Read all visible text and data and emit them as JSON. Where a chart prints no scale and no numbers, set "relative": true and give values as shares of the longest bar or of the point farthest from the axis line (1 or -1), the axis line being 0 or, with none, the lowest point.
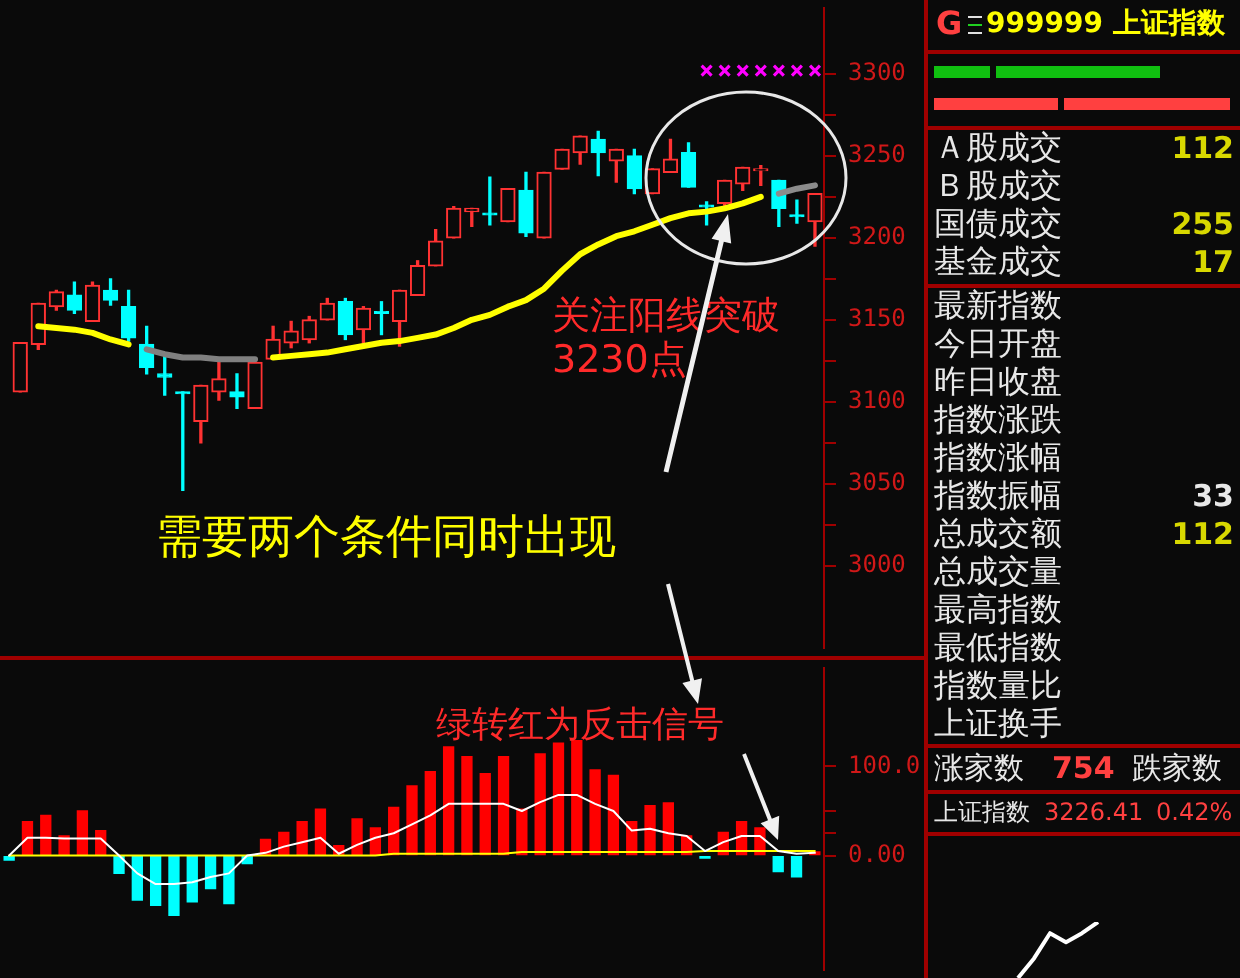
{
  "chart_data": [
    {
      "type": "candlestick",
      "categories": [
        null,
        null,
        null,
        null,
        null,
        null,
        null,
        null,
        null,
        null,
        null,
        null,
        null,
        null,
        null,
        null,
        null,
        null,
        null,
        null,
        null,
        null,
        null,
        null,
        null,
        null,
        null,
        null,
        null,
        null,
        null,
        null,
        null,
        null,
        null,
        null,
        null,
        null,
        null,
        null,
        null,
        null,
        null,
        null,
        null
      ],
      "ohlc": [
        [
          3106,
          3136,
          3106,
          3136
        ],
        [
          3135,
          3160,
          3132,
          3160
        ],
        [
          3158,
          3168,
          3156,
          3167
        ],
        [
          3165,
          3173,
          3154,
          3156
        ],
        [
          3149,
          3173,
          3149,
          3171
        ],
        [
          3168,
          3175,
          3159,
          3162
        ],
        [
          3158,
          3168,
          3137,
          3139
        ],
        [
          3135,
          3146,
          3117,
          3121
        ],
        [
          3117,
          3128,
          3104,
          3115
        ],
        [
          3106,
          3106,
          3046,
          3105
        ],
        [
          3088,
          3110,
          3075,
          3110
        ],
        [
          3106,
          3124,
          3101,
          3114
        ],
        [
          3106,
          3117,
          3096,
          3103
        ],
        [
          3096,
          3124,
          3096,
          3124
        ],
        [
          3126,
          3146,
          3126,
          3138
        ],
        [
          3136,
          3149,
          3133,
          3143
        ],
        [
          3138,
          3152,
          3136,
          3150
        ],
        [
          3150,
          3163,
          3150,
          3160
        ],
        [
          3161,
          3163,
          3138,
          3141
        ],
        [
          3144,
          3158,
          3136,
          3157
        ],
        [
          3155,
          3161,
          3141,
          3154
        ],
        [
          3149,
          3168,
          3134,
          3168
        ],
        [
          3165,
          3186,
          3165,
          3183
        ],
        [
          3183,
          3205,
          3183,
          3198
        ],
        [
          3200,
          3219,
          3200,
          3218
        ],
        [
          3216,
          3218,
          3207,
          3218
        ],
        [
          3215,
          3237,
          3208,
          3214
        ],
        [
          3210,
          3230,
          3210,
          3230
        ],
        [
          3229,
          3240,
          3201,
          3203
        ],
        [
          3200,
          3240,
          3200,
          3240
        ],
        [
          3242,
          3254,
          3242,
          3254
        ],
        [
          3252,
          3262,
          3245,
          3262
        ],
        [
          3260,
          3265,
          3238,
          3252
        ],
        [
          3247,
          3254,
          3234,
          3254
        ],
        [
          3250,
          3254,
          3227,
          3230
        ],
        [
          3227,
          3242,
          3227,
          3242
        ],
        [
          3240,
          3260,
          3240,
          3248
        ],
        [
          3252,
          3258,
          3231,
          3231
        ],
        [
          3220,
          3222,
          3208,
          3219
        ],
        [
          3221,
          3235,
          3218,
          3235
        ],
        [
          3233,
          3243,
          3229,
          3243
        ],
        [
          3241,
          3244,
          3232,
          3242
        ],
        [
          3235,
          3235,
          3207,
          3218
        ],
        [
          3214,
          3223,
          3209,
          3213
        ],
        [
          3210,
          3227,
          3195,
          3227
        ]
      ],
      "colors": [
        "#ff3232",
        "#ff3232",
        "#ff3232",
        "#00ffff",
        "#ff3232",
        "#00ffff",
        "#00ffff",
        "#00ffff",
        "#00ffff",
        "#00ffff",
        "#ff3232",
        "#ff3232",
        "#00ffff",
        "#ff3232",
        "#ff3232",
        "#ff3232",
        "#ff3232",
        "#ff3232",
        "#00ffff",
        "#ff3232",
        "#00ffff",
        "#ff3232",
        "#ff3232",
        "#ff3232",
        "#ff3232",
        "#ff3232",
        "#00ffff",
        "#ff3232",
        "#00ffff",
        "#ff3232",
        "#ff3232",
        "#ff3232",
        "#00ffff",
        "#ff3232",
        "#00ffff",
        "#ff3232",
        "#ff3232",
        "#00ffff",
        "#00ffff",
        "#ff3232",
        "#ff3232",
        "#ff3232",
        "#00ffff",
        "#00ffff",
        "#ff3232"
      ],
      "series": [
        {
          "type": "line",
          "color": "#ffff00",
          "values": [
            null,
            3146,
            3145,
            3144,
            3142,
            3138,
            3135,
            null,
            null,
            null,
            null,
            null,
            null,
            null,
            3127,
            3128,
            3129,
            3130,
            3132,
            3134,
            3136,
            3137,
            3139,
            3141,
            3145,
            3150,
            3153,
            3158,
            3162,
            3169,
            3180,
            3190,
            3196,
            3201,
            3204,
            3208,
            3212,
            3215,
            3216,
            3218,
            3221,
            3225,
            null,
            null,
            null
          ]
        },
        {
          "type": "line",
          "color": "#808080",
          "values": [
            null,
            null,
            null,
            null,
            null,
            null,
            null,
            3132,
            3129,
            3127,
            3127,
            3126,
            3126,
            3126,
            null,
            null,
            null,
            null,
            null,
            null,
            null,
            null,
            null,
            null,
            null,
            null,
            null,
            null,
            null,
            null,
            null,
            null,
            null,
            null,
            null,
            null,
            null,
            null,
            null,
            null,
            null,
            null,
            null,
            null,
            null
          ]
        },
        {
          "type": "line",
          "color": "#8c8c8c",
          "values": [
            null,
            null,
            null,
            null,
            null,
            null,
            null,
            null,
            null,
            null,
            null,
            null,
            null,
            null,
            null,
            null,
            null,
            null,
            null,
            null,
            null,
            null,
            null,
            null,
            null,
            null,
            null,
            null,
            null,
            null,
            null,
            null,
            null,
            null,
            null,
            null,
            null,
            null,
            null,
            null,
            null,
            null,
            3227,
            3230,
            3232
          ]
        },
        {
          "type": "scatter",
          "color": "#ff00ff",
          "marker": "cross",
          "values": [
            null,
            null,
            null,
            null,
            null,
            null,
            null,
            null,
            null,
            null,
            null,
            null,
            null,
            null,
            null,
            null,
            null,
            null,
            null,
            null,
            null,
            null,
            null,
            null,
            null,
            null,
            null,
            null,
            null,
            null,
            null,
            null,
            null,
            null,
            null,
            null,
            null,
            null,
            3302,
            3302,
            3302,
            3302,
            3302,
            3302,
            3302
          ]
        }
      ],
      "ylim": [
        2950,
        3340
      ],
      "yticks": [
        3000,
        {
          "value": 3025,
          "label": null
        },
        3050,
        {
          "value": 3075,
          "label": null
        },
        3100,
        {
          "value": 3125,
          "label": null
        },
        3150,
        {
          "value": 3175,
          "label": null
        },
        3200,
        {
          "value": 3225,
          "label": null
        },
        3250,
        {
          "value": 3275,
          "label": null
        },
        3300
      ],
      "tick_labels": "y",
      "annotations": [
        "关注阳线突破\n3230点",
        "需要两个条件同时出现"
      ]
    },
    {
      "type": "bar",
      "categories": [
        null,
        null,
        null,
        null,
        null,
        null,
        null,
        null,
        null,
        null,
        null,
        null,
        null,
        null,
        null,
        null,
        null,
        null,
        null,
        null,
        null,
        null,
        null,
        null,
        null,
        null,
        null,
        null,
        null,
        null,
        null,
        null,
        null,
        null,
        null,
        null,
        null,
        null,
        null,
        null,
        null,
        null,
        null,
        null,
        null
      ],
      "series": [
        {
          "type": "bar",
          "colors": [
            "#00ffff",
            "#ff0000",
            "#ff0000",
            "#ff0000",
            "#ff0000",
            "#ff0000",
            "#00ffff",
            "#00ffff",
            "#00ffff",
            "#00ffff",
            "#00ffff",
            "#00ffff",
            "#00ffff",
            "#00ffff",
            "#ff0000",
            "#ff0000",
            "#ff0000",
            "#ff0000",
            "#ff0000",
            "#ff0000",
            "#ff0000",
            "#ff0000",
            "#ff0000",
            "#ff0000",
            "#ff0000",
            "#ff0000",
            "#ff0000",
            "#ff0000",
            "#ff0000",
            "#ff0000",
            "#ff0000",
            "#ff0000",
            "#ff0000",
            "#ff0000",
            "#ff0000",
            "#ff0000",
            "#ff0000",
            "#ff0000",
            "#00ffff",
            "#ff0000",
            "#ff0000",
            "#ff0000",
            "#00ffff",
            "#00ffff",
            "#ff0000"
          ],
          "values": [
            -5,
            38,
            45,
            22,
            50,
            28,
            -20,
            -50,
            -56,
            -67,
            -52,
            -37,
            -54,
            -9,
            18,
            26,
            38,
            52,
            11,
            41,
            31,
            54,
            78,
            94,
            122,
            111,
            92,
            111,
            52,
            114,
            126,
            129,
            96,
            90,
            38,
            56,
            59,
            22,
            -3,
            26,
            38,
            31,
            -18,
            -24,
            4
          ]
        },
        {
          "type": "line",
          "color": "#ffffff",
          "values": [
            0,
            20,
            20,
            19,
            19,
            19,
            0,
            -20,
            -32,
            -32,
            -30,
            -24,
            -20,
            0,
            3,
            10,
            15,
            20,
            2,
            12,
            20,
            25,
            35,
            45,
            58,
            58,
            58,
            58,
            50,
            60,
            68,
            68,
            58,
            50,
            28,
            30,
            25,
            22,
            5,
            15,
            22,
            22,
            5,
            2,
            3
          ]
        },
        {
          "type": "line",
          "color": "#ffff00",
          "values": [
            0,
            0,
            0,
            0,
            0,
            0,
            0,
            0,
            0,
            0,
            0,
            0,
            0,
            0,
            0,
            0,
            0,
            0,
            0,
            0,
            0,
            2,
            2,
            2,
            2,
            2,
            2,
            2,
            4,
            4,
            4,
            4,
            4,
            4,
            4,
            4,
            4,
            4,
            5,
            5,
            5,
            5,
            5,
            5,
            5
          ]
        }
      ],
      "ylim": [
        -128,
        210
      ],
      "yticks": [
        {
          "value": 0,
          "label": "0.00"
        },
        {
          "value": 25,
          "label": null
        },
        {
          "value": 50,
          "label": null
        },
        {
          "value": 100,
          "label": "100.0"
        }
      ],
      "tick_labels": "y",
      "annotations": [
        "绿转红为反击信号"
      ]
    },
    {
      "type": "other",
      "title": "999999 上证指数",
      "categories": [
        "Ａ股成交",
        "Ｂ股成交",
        "国债成交",
        "基金成交",
        "最新指数",
        "今日开盘",
        "昨日收盘",
        "指数涨跌",
        "指数涨幅",
        "指数振幅",
        "总成交额",
        "总成交量",
        "最高指数",
        "最低指数",
        "指数量比",
        "上证换手",
        "涨家数"
      ],
      "value_labels": [
        "112",
        null,
        "255",
        "17",
        null,
        null,
        null,
        null,
        null,
        "33",
        "112",
        null,
        null,
        null,
        null,
        null,
        "754"
      ],
      "annotations": [
        "G",
        "跌家数",
        "上证指数",
        "3226.41",
        "0.42%"
      ]
    },
    {
      "type": "line",
      "relative": true,
      "tick_labels": false,
      "color": "#ffffff",
      "categories": [
        null,
        null,
        null,
        null,
        null,
        null
      ],
      "values": [
        0,
        0.35,
        0.8,
        0.64,
        0.8,
        1
      ]
    }
  ]
}
